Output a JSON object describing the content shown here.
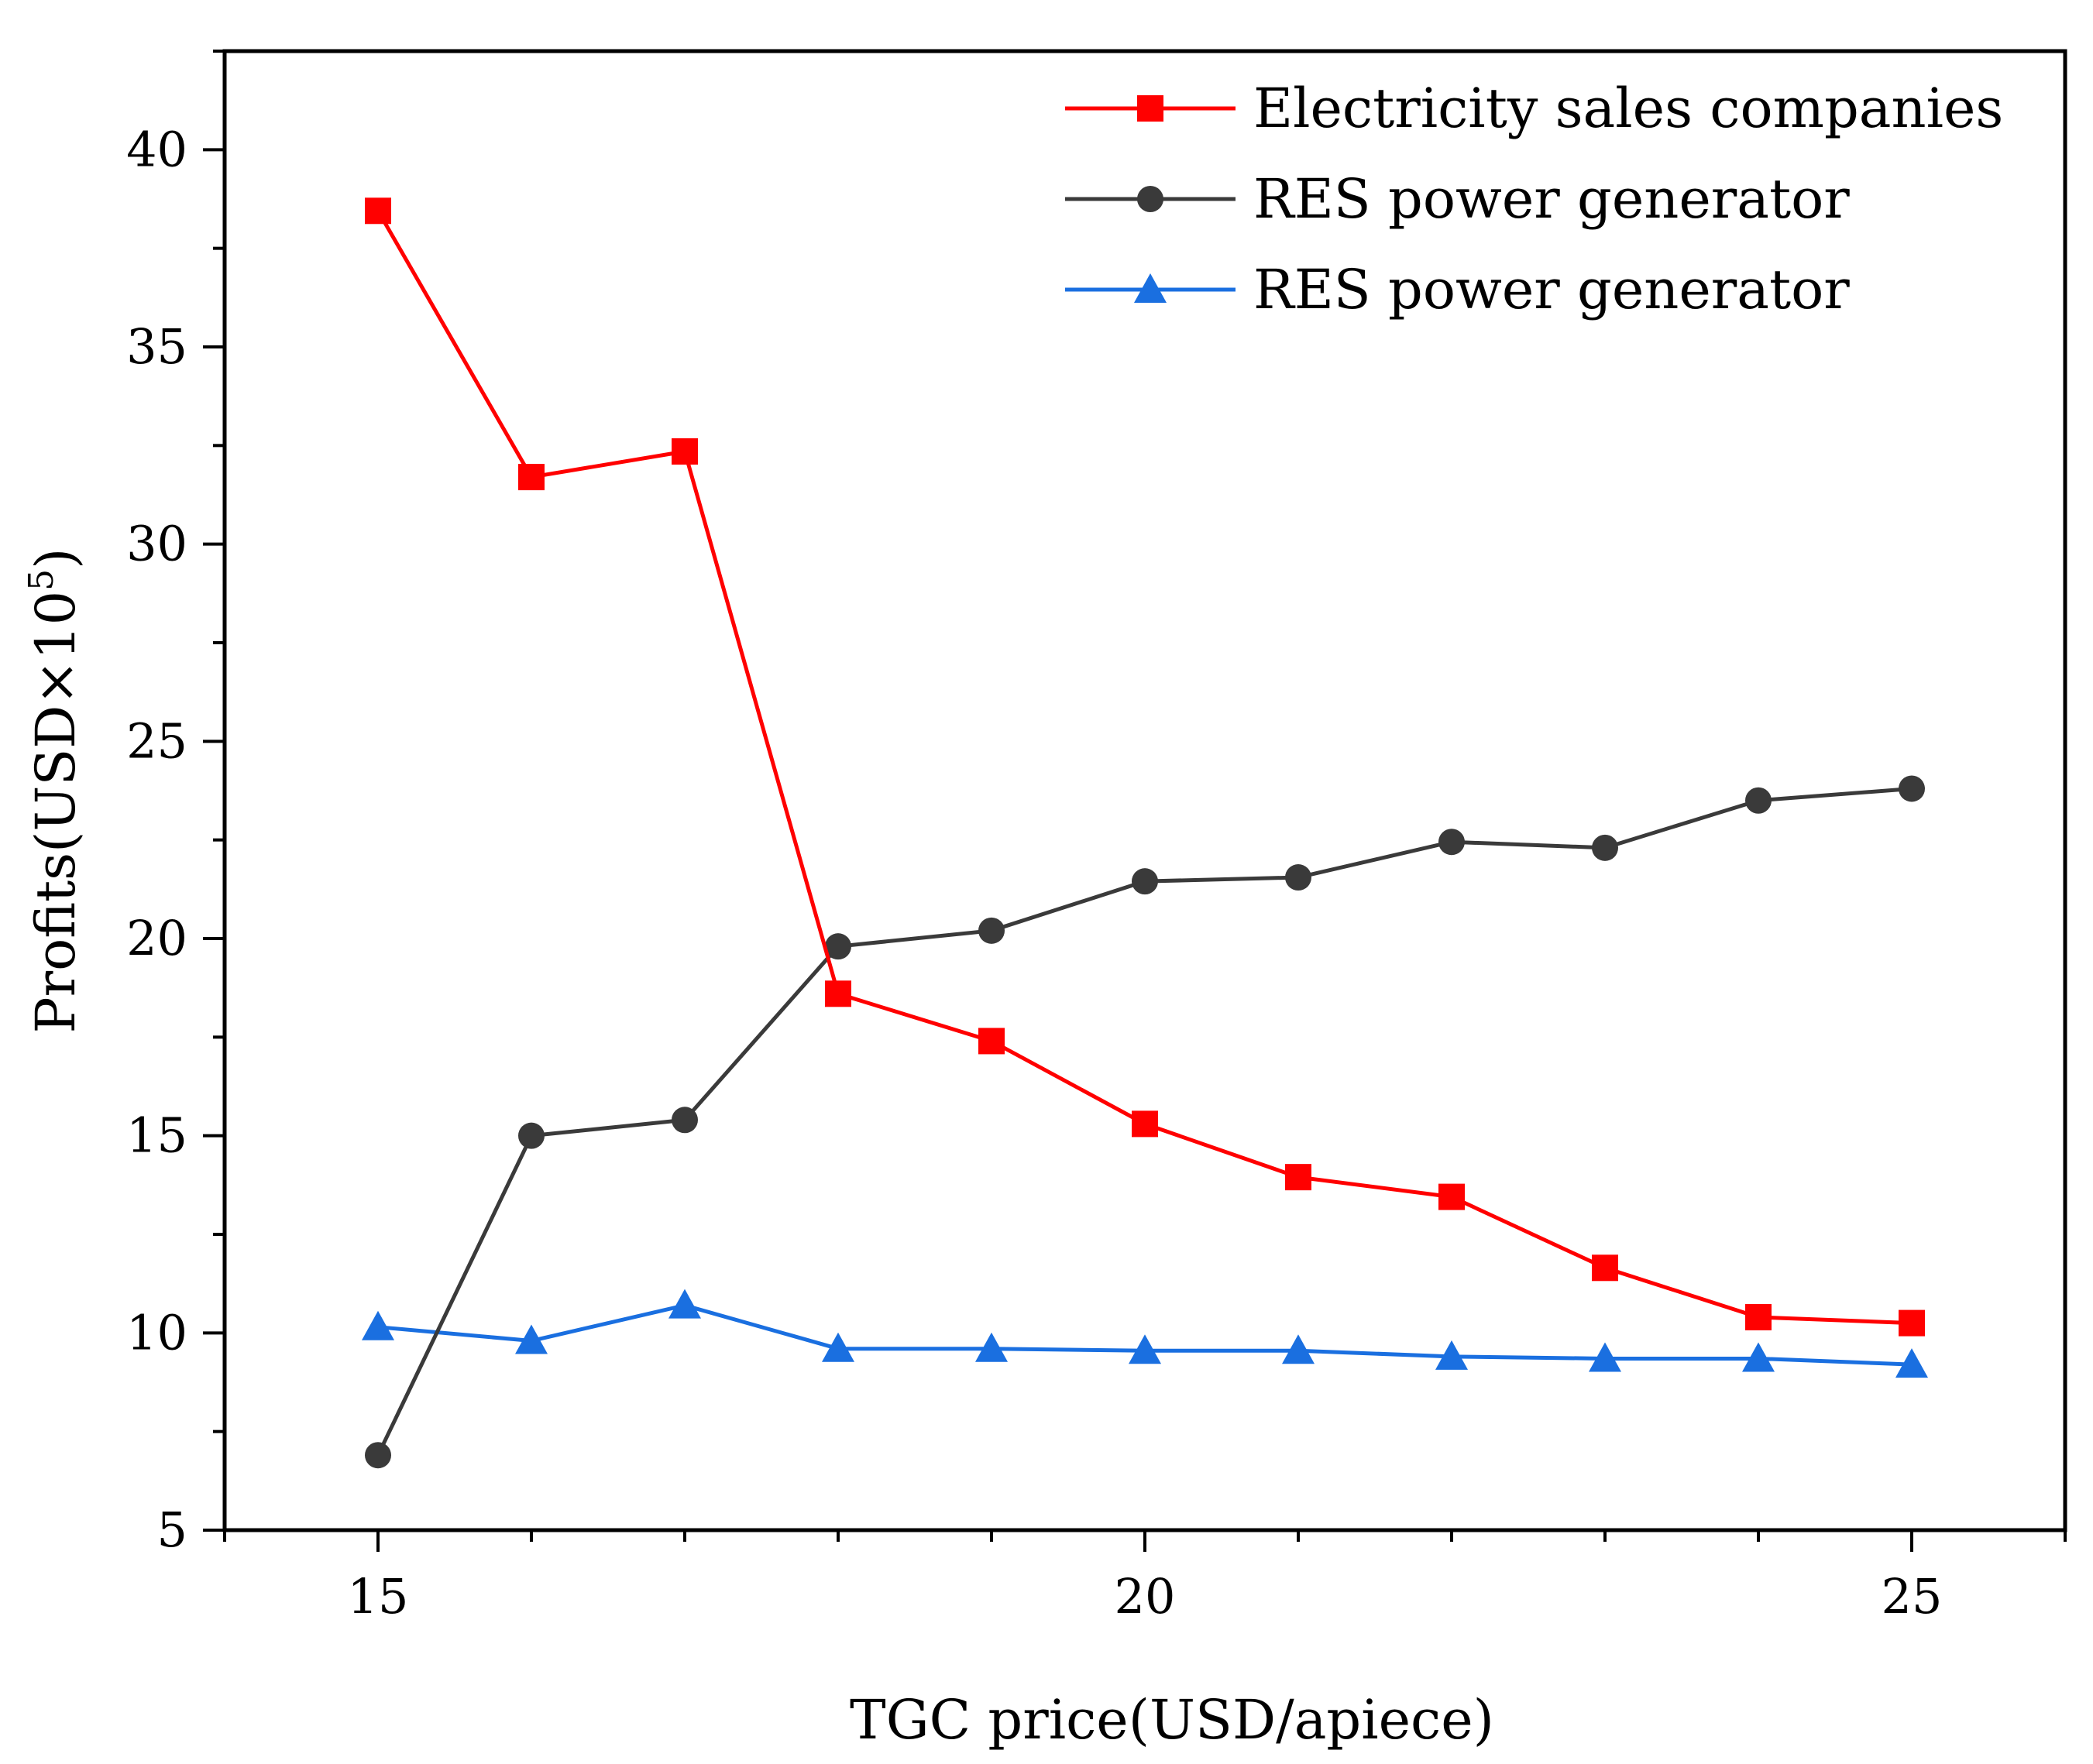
{
  "chart_data": {
    "type": "line",
    "title": "",
    "xlabel": "TGC price(USD/apiece)",
    "ylabel": "Profits(USD×10",
    "ylabel_superscript": "5",
    "ylabel_suffix": ")",
    "xlim": [
      14,
      26
    ],
    "ylim": [
      5,
      42.5
    ],
    "x_major_ticks": [
      15,
      20,
      25
    ],
    "x_tick_labels": [
      "15",
      "20",
      "25"
    ],
    "y_major_ticks": [
      5,
      10,
      15,
      20,
      25,
      30,
      35,
      40
    ],
    "y_tick_labels": [
      "5",
      "10",
      "15",
      "20",
      "25",
      "30",
      "35",
      "40"
    ],
    "grid": false,
    "legend_position": "top-right",
    "x": [
      15,
      16,
      17,
      18,
      19,
      20,
      21,
      22,
      23,
      24,
      25
    ],
    "series": [
      {
        "name": "Electricity sales companies",
        "color": "#ff0000",
        "marker": "square",
        "values": [
          38.45,
          31.7,
          32.35,
          18.6,
          17.4,
          15.3,
          13.95,
          13.45,
          11.65,
          10.4,
          10.25
        ]
      },
      {
        "name": "RES power generator",
        "color": "#3a3a3a",
        "marker": "circle",
        "values": [
          6.9,
          15.0,
          15.4,
          19.8,
          20.2,
          21.45,
          21.55,
          22.45,
          22.3,
          23.5,
          23.8
        ]
      },
      {
        "name": "RES power generator",
        "color": "#1a6fe0",
        "marker": "triangle",
        "values": [
          10.15,
          9.8,
          10.7,
          9.6,
          9.6,
          9.55,
          9.55,
          9.4,
          9.35,
          9.35,
          9.2
        ]
      }
    ]
  }
}
